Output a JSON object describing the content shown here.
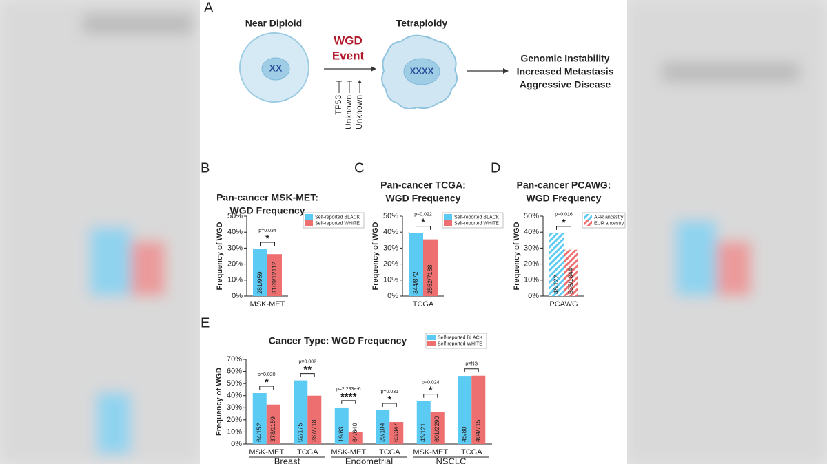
{
  "panel_a": {
    "letter": "A",
    "left_label": "Near Diploid",
    "event": [
      "WGD",
      "Event"
    ],
    "right_label": "Tetraploidy",
    "regulators": [
      "TP53",
      "Unknown",
      "Unknown"
    ],
    "outcomes": [
      "Genomic Instability",
      "Increased Metastasis",
      "Aggressive Disease"
    ]
  },
  "chart_data": [
    {
      "type": "bar",
      "panel": "B",
      "title": [
        "Pan-cancer MSK-MET:",
        "WGD Frequency"
      ],
      "y_label": "Frequency of WGD",
      "categories": [
        "MSK-MET"
      ],
      "series": [
        {
          "name": "Self-reported BLACK",
          "color": "#5ccbf3",
          "values": [
            29.3
          ],
          "counts": [
            "281/959"
          ]
        },
        {
          "name": "Self-reported WHITE",
          "color": "#ee6f6f",
          "values": [
            26.2
          ],
          "counts": [
            "3169/12112"
          ]
        }
      ],
      "ylim": [
        0,
        50
      ],
      "yticks": [
        {
          "value": 0,
          "label": "0%"
        },
        {
          "value": 10,
          "label": "10%"
        },
        {
          "value": 20,
          "label": "20%"
        },
        {
          "value": 30,
          "label": "30%"
        },
        {
          "value": 40,
          "label": "40%"
        },
        {
          "value": 50,
          "label": "50%"
        }
      ],
      "p_values": [
        "p=0.034"
      ],
      "significance": [
        "*"
      ],
      "hatched": false
    },
    {
      "type": "bar",
      "panel": "C",
      "title": [
        "Pan-cancer TCGA:",
        "WGD Frequency"
      ],
      "y_label": "Frequency of WGD",
      "categories": [
        "TCGA"
      ],
      "series": [
        {
          "name": "Self-reported BLACK",
          "color": "#5ccbf3",
          "values": [
            39.4
          ],
          "counts": [
            "344/872"
          ]
        },
        {
          "name": "Self-reported WHITE",
          "color": "#ee6f6f",
          "values": [
            35.5
          ],
          "counts": [
            "2552/7188"
          ]
        }
      ],
      "ylim": [
        0,
        50
      ],
      "yticks": [
        {
          "value": 0,
          "label": "0%"
        },
        {
          "value": 10,
          "label": "10%"
        },
        {
          "value": 20,
          "label": "20%"
        },
        {
          "value": 30,
          "label": "30%"
        },
        {
          "value": 40,
          "label": "40%"
        },
        {
          "value": 50,
          "label": "50%"
        }
      ],
      "p_values": [
        "p=0.022"
      ],
      "significance": [
        "*"
      ],
      "hatched": false
    },
    {
      "type": "bar",
      "panel": "D",
      "title": [
        "Pan-cancer PCAWG:",
        "WGD Frequency"
      ],
      "y_label": "Frequency of WGD",
      "categories": [
        "PCAWG"
      ],
      "series": [
        {
          "name": "AFR ancestry",
          "color": "#5ccbf3",
          "values": [
            39.3
          ],
          "counts": [
            "48/122"
          ]
        },
        {
          "name": "EUR ancestry",
          "color": "#ee6f6f",
          "values": [
            29.0
          ],
          "counts": [
            "535/1844"
          ]
        }
      ],
      "ylim": [
        0,
        50
      ],
      "yticks": [
        {
          "value": 0,
          "label": "0%"
        },
        {
          "value": 10,
          "label": "10%"
        },
        {
          "value": 20,
          "label": "20%"
        },
        {
          "value": 30,
          "label": "30%"
        },
        {
          "value": 40,
          "label": "40%"
        },
        {
          "value": 50,
          "label": "50%"
        }
      ],
      "p_values": [
        "p=0.016"
      ],
      "significance": [
        "*"
      ],
      "hatched": true
    },
    {
      "type": "bar",
      "panel": "E",
      "title": [
        "Cancer Type: WGD Frequency"
      ],
      "y_label": "Frequency of WGD",
      "categories": [
        "MSK-MET",
        "TCGA",
        "MSK-MET",
        "TCGA",
        "MSK-MET",
        "TCGA"
      ],
      "groups": [
        "Breast",
        "Endometrial",
        "NSCLC"
      ],
      "series": [
        {
          "name": "Self-reported BLACK",
          "color": "#5ccbf3",
          "values": [
            42.1,
            52.6,
            30.2,
            27.9,
            35.5,
            56.3
          ],
          "counts": [
            "64/152",
            "92/175",
            "19/63",
            "29/104",
            "43/121",
            "45/80"
          ]
        },
        {
          "name": "Self-reported WHITE",
          "color": "#ee6f6f",
          "values": [
            32.6,
            40.0,
            10.0,
            18.2,
            26.2,
            56.5
          ],
          "counts": [
            "378/1159",
            "287/718",
            "64/640",
            "63/347",
            "601/2290",
            "404/715"
          ]
        }
      ],
      "ylim": [
        0,
        70
      ],
      "yticks": [
        {
          "value": 0,
          "label": "0%"
        },
        {
          "value": 10,
          "label": "10%"
        },
        {
          "value": 20,
          "label": "20%"
        },
        {
          "value": 30,
          "label": "30%"
        },
        {
          "value": 40,
          "label": "40%"
        },
        {
          "value": 50,
          "label": "50%"
        },
        {
          "value": 60,
          "label": "60%"
        },
        {
          "value": 70,
          "label": "70%"
        }
      ],
      "p_values": [
        "p=0.020",
        "p=0.002",
        "p=2.233e-6",
        "p=0.031",
        "p=0.024",
        "p=NS"
      ],
      "significance": [
        "*",
        "**",
        "****",
        "*",
        "*",
        null
      ],
      "hatched": false
    }
  ]
}
